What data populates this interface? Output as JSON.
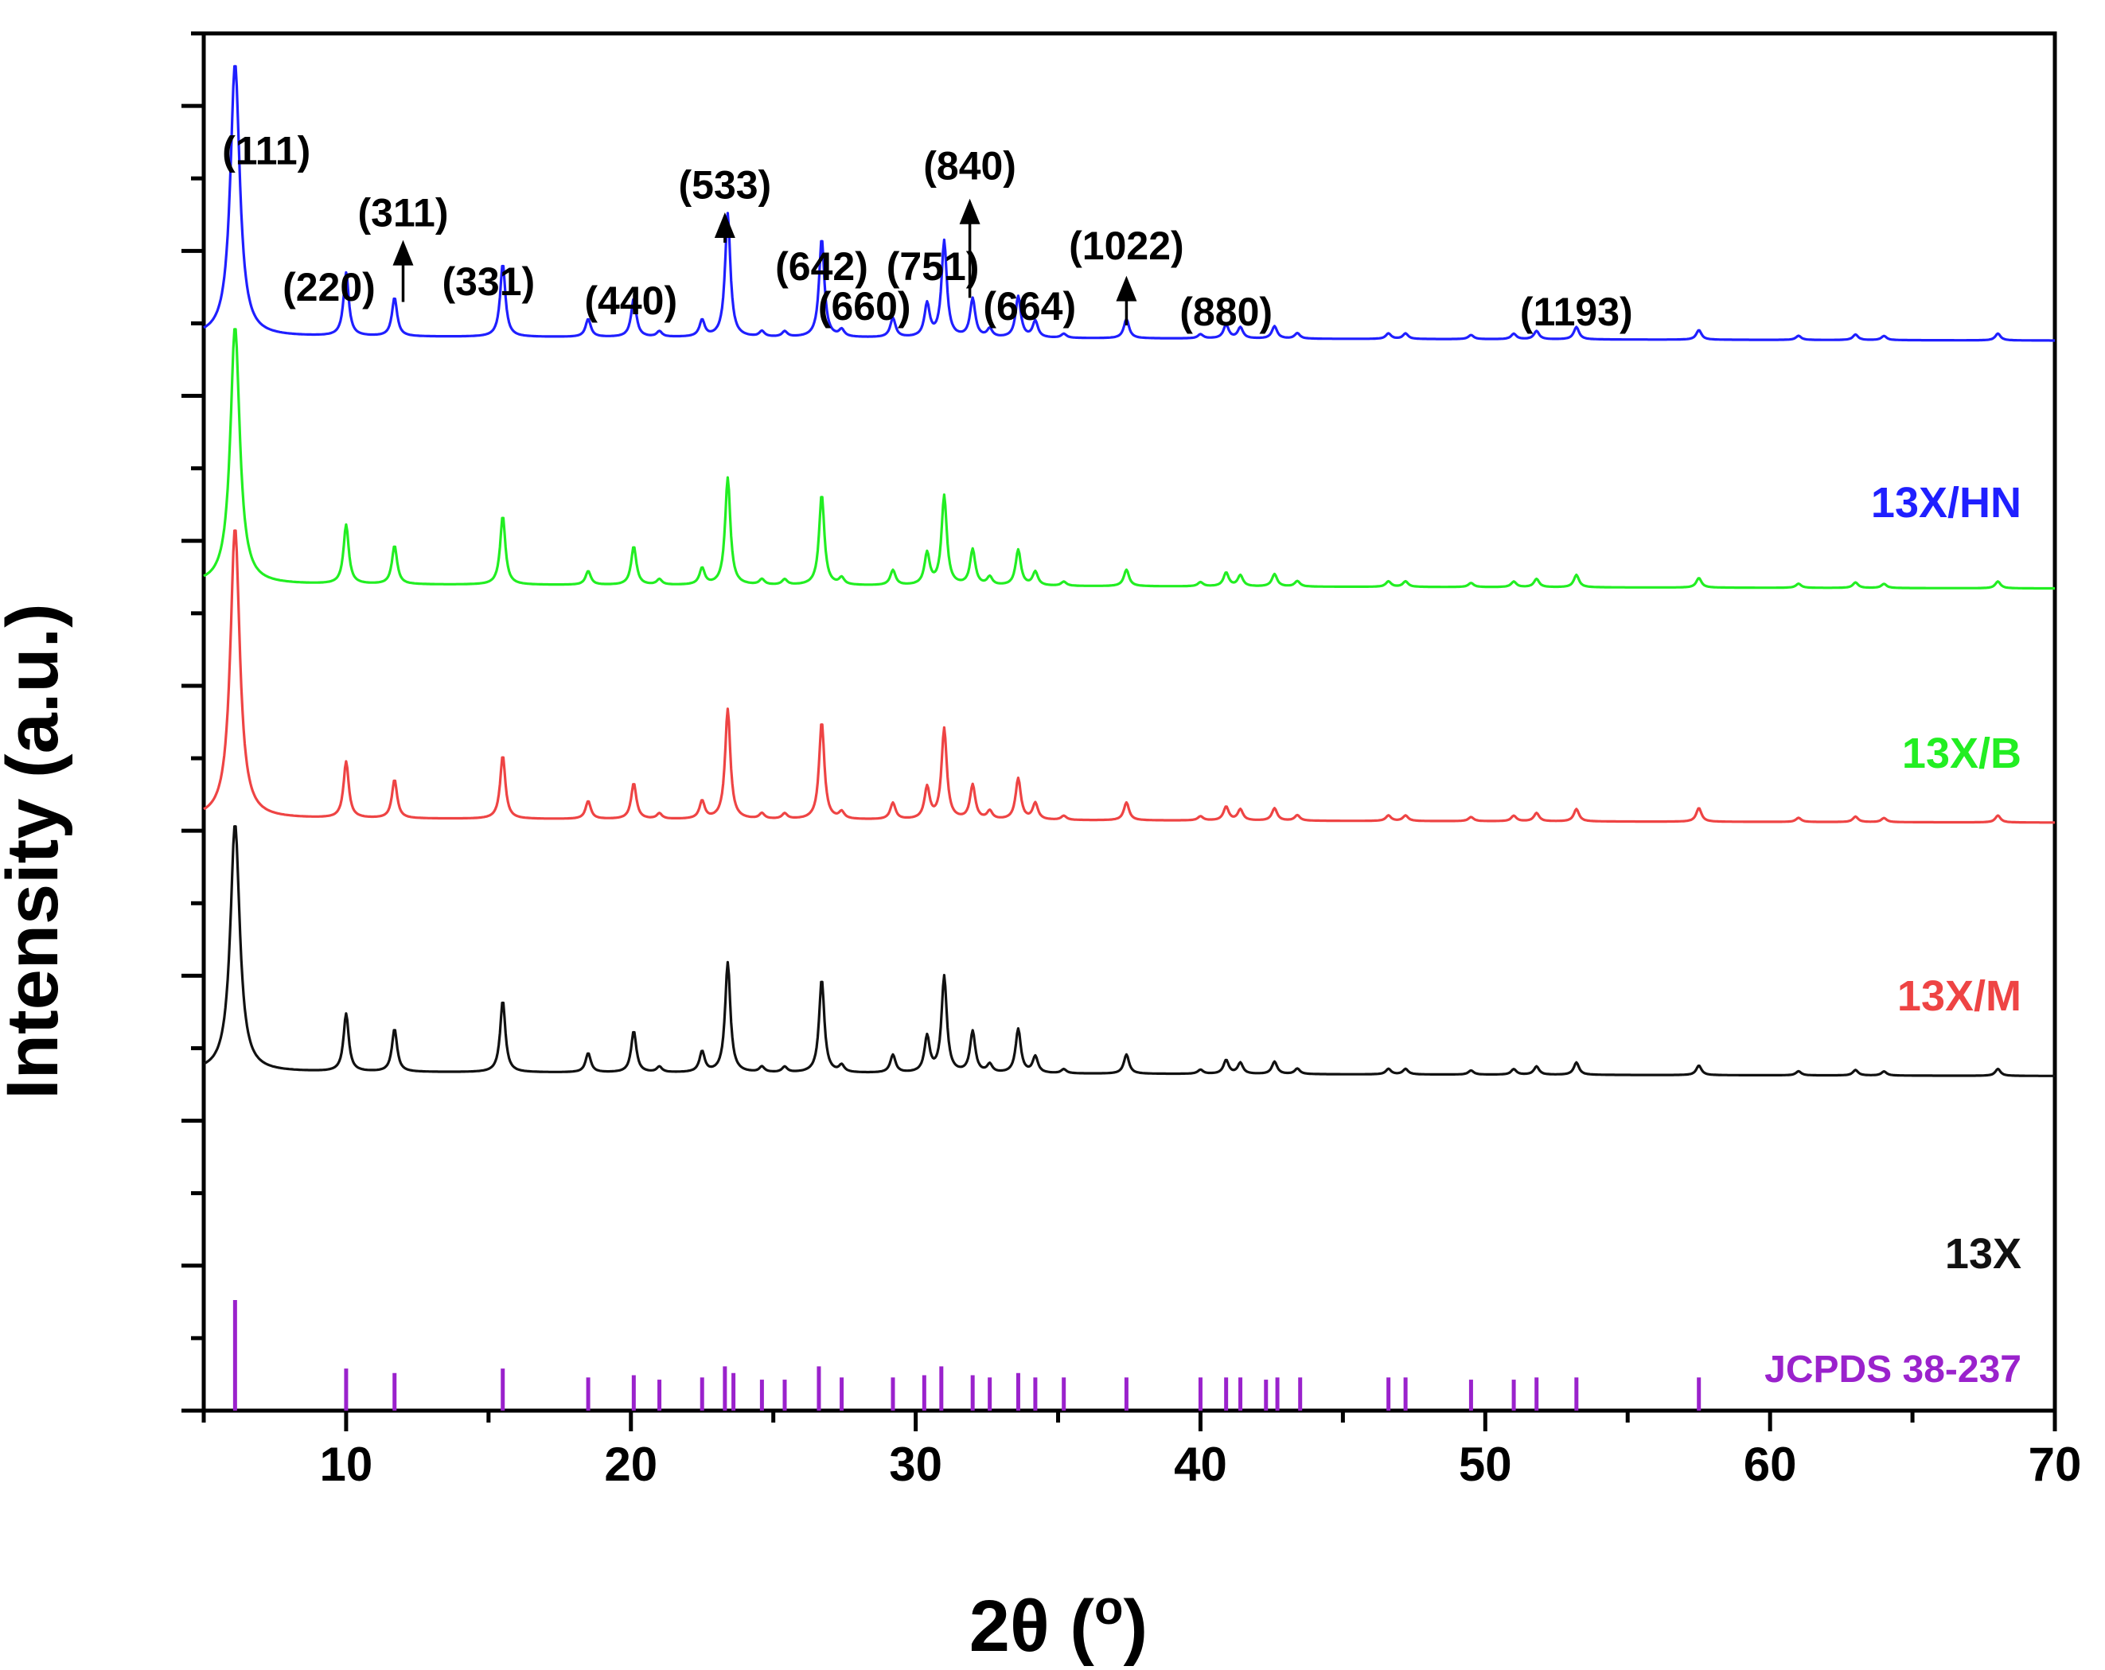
{
  "chart_data": {
    "type": "line",
    "xlabel": "2θ (",
    "xlabel_degree": "o",
    "xlabel_close": ")",
    "ylabel": "Intensity (a.u.)",
    "xlim": [
      5,
      70
    ],
    "ylim": [
      0,
      100
    ],
    "x_ticks": [
      10,
      20,
      30,
      40,
      50,
      60,
      70
    ],
    "x_tick_labels": [
      "10",
      "20",
      "30",
      "40",
      "50",
      "60",
      "70"
    ],
    "y_tick_labels_shown": false,
    "grid": false,
    "peak_positions": [
      6.1,
      10.0,
      11.7,
      15.5,
      18.5,
      20.1,
      21.0,
      22.5,
      23.4,
      24.6,
      25.4,
      26.7,
      27.4,
      29.2,
      30.4,
      31.0,
      32.0,
      32.6,
      33.6,
      34.2,
      35.2,
      37.4,
      40.0,
      40.9,
      41.4,
      42.6,
      43.4,
      46.6,
      47.2,
      49.5,
      51.0,
      51.8,
      53.2,
      57.5,
      61.0,
      63.0,
      64.0,
      68.0
    ],
    "series": [
      {
        "name": "13X/HN",
        "color": "#1f1fff",
        "baseline": 78.0,
        "tail": 77.7,
        "peaks": [
          19.8,
          4.6,
          2.8,
          5.3,
          1.3,
          2.8,
          0.4,
          1.2,
          9.0,
          0.4,
          0.4,
          7.2,
          0.5,
          1.4,
          2.4,
          7.0,
          2.8,
          0.6,
          3.0,
          1.2,
          0.3,
          1.4,
          0.3,
          1.0,
          0.8,
          0.9,
          0.4,
          0.4,
          0.4,
          0.3,
          0.4,
          0.6,
          0.9,
          0.7,
          0.3,
          0.4,
          0.3,
          0.5
        ]
      },
      {
        "name": "13X/B",
        "color": "#22ee22",
        "baseline": 60.0,
        "tail": 59.7,
        "peaks": [
          18.7,
          4.3,
          2.8,
          5.0,
          1.0,
          2.8,
          0.4,
          1.2,
          7.8,
          0.4,
          0.4,
          6.6,
          0.5,
          1.1,
          2.3,
          6.5,
          2.6,
          0.6,
          2.6,
          1.0,
          0.3,
          1.2,
          0.3,
          1.0,
          0.8,
          0.9,
          0.4,
          0.4,
          0.4,
          0.3,
          0.4,
          0.6,
          0.9,
          0.7,
          0.3,
          0.4,
          0.3,
          0.5
        ]
      },
      {
        "name": "13X/M",
        "color": "#ee4444",
        "baseline": 43.0,
        "tail": 42.7,
        "peaks": [
          21.1,
          4.1,
          2.8,
          4.6,
          1.3,
          2.6,
          0.4,
          1.3,
          8.0,
          0.4,
          0.4,
          7.1,
          0.5,
          1.2,
          2.3,
          6.6,
          2.5,
          0.6,
          3.0,
          1.2,
          0.3,
          1.3,
          0.3,
          1.0,
          0.8,
          0.9,
          0.4,
          0.4,
          0.4,
          0.3,
          0.4,
          0.6,
          0.9,
          1.0,
          0.3,
          0.4,
          0.3,
          0.5
        ]
      },
      {
        "name": "13X",
        "color": "#111111",
        "baseline": 24.6,
        "tail": 24.3,
        "peaks": [
          18.0,
          4.2,
          3.1,
          5.2,
          1.4,
          3.0,
          0.4,
          1.5,
          8.0,
          0.4,
          0.4,
          6.8,
          0.5,
          1.3,
          2.6,
          7.0,
          3.0,
          0.6,
          3.2,
          1.2,
          0.3,
          1.4,
          0.3,
          1.0,
          0.8,
          0.9,
          0.4,
          0.4,
          0.4,
          0.3,
          0.4,
          0.6,
          0.9,
          0.7,
          0.3,
          0.4,
          0.3,
          0.5
        ]
      }
    ],
    "reference": {
      "name": "JCPDS 38-237",
      "color": "#9a22cc",
      "lines": [
        {
          "x": 6.1,
          "h": 100
        },
        {
          "x": 10.0,
          "h": 38
        },
        {
          "x": 11.7,
          "h": 34
        },
        {
          "x": 15.5,
          "h": 38
        },
        {
          "x": 18.5,
          "h": 30
        },
        {
          "x": 20.1,
          "h": 32
        },
        {
          "x": 21.0,
          "h": 28
        },
        {
          "x": 22.5,
          "h": 30
        },
        {
          "x": 23.3,
          "h": 40
        },
        {
          "x": 23.6,
          "h": 34
        },
        {
          "x": 24.6,
          "h": 28
        },
        {
          "x": 25.4,
          "h": 28
        },
        {
          "x": 26.6,
          "h": 40
        },
        {
          "x": 27.4,
          "h": 30
        },
        {
          "x": 29.2,
          "h": 30
        },
        {
          "x": 30.3,
          "h": 32
        },
        {
          "x": 30.9,
          "h": 40
        },
        {
          "x": 32.0,
          "h": 32
        },
        {
          "x": 32.6,
          "h": 30
        },
        {
          "x": 33.6,
          "h": 34
        },
        {
          "x": 34.2,
          "h": 30
        },
        {
          "x": 35.2,
          "h": 30
        },
        {
          "x": 37.4,
          "h": 30
        },
        {
          "x": 40.0,
          "h": 30
        },
        {
          "x": 40.9,
          "h": 30
        },
        {
          "x": 41.4,
          "h": 30
        },
        {
          "x": 42.3,
          "h": 28
        },
        {
          "x": 42.7,
          "h": 30
        },
        {
          "x": 43.5,
          "h": 30
        },
        {
          "x": 46.6,
          "h": 30
        },
        {
          "x": 47.2,
          "h": 30
        },
        {
          "x": 49.5,
          "h": 28
        },
        {
          "x": 51.0,
          "h": 28
        },
        {
          "x": 51.8,
          "h": 30
        },
        {
          "x": 53.2,
          "h": 30
        },
        {
          "x": 57.5,
          "h": 30
        }
      ]
    },
    "annotations": [
      {
        "text": "(111)",
        "x": 7.2,
        "y": 90.5,
        "arrow": false
      },
      {
        "text": "(220)",
        "x": 9.4,
        "y": 80.6,
        "arrow": false
      },
      {
        "text": "(311)",
        "x": 12.0,
        "y": 86.0,
        "arrow": true,
        "arrow_from_y": 80.5,
        "arrow_to_y": 85.0
      },
      {
        "text": "(331)",
        "x": 15.0,
        "y": 81.0,
        "arrow": false
      },
      {
        "text": "(440)",
        "x": 20.0,
        "y": 79.6,
        "arrow": false
      },
      {
        "text": "(533)",
        "x": 23.3,
        "y": 88.0,
        "arrow": true,
        "arrow_from_y": 84.8,
        "arrow_to_y": 87.0
      },
      {
        "text": "(642)",
        "x": 26.7,
        "y": 82.1,
        "arrow": false
      },
      {
        "text": "(751)",
        "x": 30.6,
        "y": 82.1,
        "arrow": false
      },
      {
        "text": "(660)",
        "x": 28.2,
        "y": 79.2,
        "arrow": false
      },
      {
        "text": "(840)",
        "x": 31.9,
        "y": 89.4,
        "arrow": true,
        "arrow_from_y": 80.8,
        "arrow_to_y": 88.0
      },
      {
        "text": "(664)",
        "x": 34.0,
        "y": 79.2,
        "arrow": false
      },
      {
        "text": "(1022)",
        "x": 37.4,
        "y": 83.6,
        "arrow": true,
        "arrow_from_y": 78.8,
        "arrow_to_y": 82.4
      },
      {
        "text": "(880)",
        "x": 40.9,
        "y": 78.8,
        "arrow": false
      },
      {
        "text": "(1193)",
        "x": 53.2,
        "y": 78.8,
        "arrow": false
      }
    ]
  }
}
